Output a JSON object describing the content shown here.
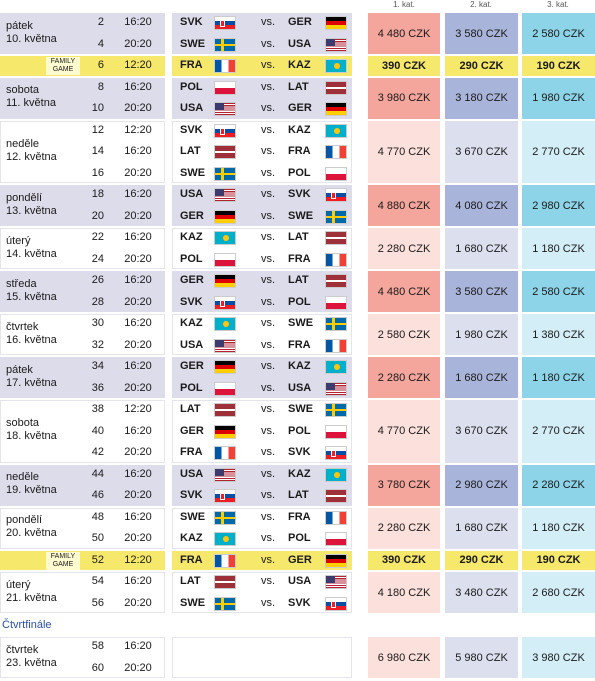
{
  "header": {
    "categories": [
      "1. kat.",
      "2. kat.",
      "3. kat."
    ]
  },
  "vs_label": "vs.",
  "flags": {
    "SVK": {
      "style": "h",
      "colors": [
        "#ffffff",
        "#0b4ea2",
        "#ee1c25"
      ]
    },
    "GER": {
      "style": "h",
      "colors": [
        "#000000",
        "#dd0000",
        "#ffce00"
      ]
    },
    "SWE": {
      "style": "cross",
      "colors": [
        "#006aa7",
        "#fecc00"
      ]
    },
    "USA": {
      "style": "usa",
      "colors": [
        "#b22234",
        "#ffffff",
        "#3c3b6e"
      ]
    },
    "FRA": {
      "style": "v",
      "colors": [
        "#0055a4",
        "#ffffff",
        "#ef4135"
      ]
    },
    "KAZ": {
      "style": "sun",
      "colors": [
        "#00afca",
        "#fec50c"
      ]
    },
    "POL": {
      "style": "h",
      "colors": [
        "#ffffff",
        "#dc143c"
      ]
    },
    "LAT": {
      "style": "lat",
      "colors": [
        "#9e3039",
        "#ffffff"
      ]
    }
  },
  "groups": [
    {
      "day": "pátek",
      "date": "10. května",
      "shaded": true,
      "matches": [
        {
          "no": 2,
          "time": "16:20",
          "home": "SVK",
          "away": "GER"
        },
        {
          "no": 4,
          "time": "20:20",
          "home": "SWE",
          "away": "USA"
        }
      ],
      "prices": [
        "4 480 CZK",
        "3 580 CZK",
        "2 580 CZK"
      ]
    },
    {
      "label": "FAMILY GAME",
      "family": true,
      "matches": [
        {
          "no": 6,
          "time": "12:20",
          "home": "FRA",
          "away": "KAZ"
        }
      ],
      "prices": [
        "390 CZK",
        "290 CZK",
        "190 CZK"
      ]
    },
    {
      "day": "sobota",
      "date": "11. května",
      "shaded": true,
      "matches": [
        {
          "no": 8,
          "time": "16:20",
          "home": "POL",
          "away": "LAT"
        },
        {
          "no": 10,
          "time": "20:20",
          "home": "USA",
          "away": "GER"
        }
      ],
      "prices": [
        "3 980 CZK",
        "3 180 CZK",
        "1 980 CZK"
      ]
    },
    {
      "day": "neděle",
      "date": "12. května",
      "shaded": false,
      "matches": [
        {
          "no": 12,
          "time": "12:20",
          "home": "SVK",
          "away": "KAZ"
        },
        {
          "no": 14,
          "time": "16:20",
          "home": "LAT",
          "away": "FRA"
        },
        {
          "no": 16,
          "time": "20:20",
          "home": "SWE",
          "away": "POL"
        }
      ],
      "prices": [
        "4 770 CZK",
        "3 670 CZK",
        "2 770 CZK"
      ]
    },
    {
      "day": "pondělí",
      "date": "13. května",
      "shaded": true,
      "matches": [
        {
          "no": 18,
          "time": "16:20",
          "home": "USA",
          "away": "SVK"
        },
        {
          "no": 20,
          "time": "20:20",
          "home": "GER",
          "away": "SWE"
        }
      ],
      "prices": [
        "4 880 CZK",
        "4 080 CZK",
        "2 980 CZK"
      ]
    },
    {
      "day": "úterý",
      "date": "14. května",
      "shaded": false,
      "matches": [
        {
          "no": 22,
          "time": "16:20",
          "home": "KAZ",
          "away": "LAT"
        },
        {
          "no": 24,
          "time": "20:20",
          "home": "POL",
          "away": "FRA"
        }
      ],
      "prices": [
        "2 280 CZK",
        "1 680 CZK",
        "1 180 CZK"
      ]
    },
    {
      "day": "středa",
      "date": "15. května",
      "shaded": true,
      "matches": [
        {
          "no": 26,
          "time": "16:20",
          "home": "GER",
          "away": "LAT"
        },
        {
          "no": 28,
          "time": "20:20",
          "home": "SVK",
          "away": "POL"
        }
      ],
      "prices": [
        "4 480 CZK",
        "3 580 CZK",
        "2 580 CZK"
      ]
    },
    {
      "day": "čtvrtek",
      "date": "16. května",
      "shaded": false,
      "matches": [
        {
          "no": 30,
          "time": "16:20",
          "home": "KAZ",
          "away": "SWE"
        },
        {
          "no": 32,
          "time": "20:20",
          "home": "USA",
          "away": "FRA"
        }
      ],
      "prices": [
        "2 580 CZK",
        "1 980 CZK",
        "1 380 CZK"
      ]
    },
    {
      "day": "pátek",
      "date": "17. května",
      "shaded": true,
      "matches": [
        {
          "no": 34,
          "time": "16:20",
          "home": "GER",
          "away": "KAZ"
        },
        {
          "no": 36,
          "time": "20:20",
          "home": "POL",
          "away": "USA"
        }
      ],
      "prices": [
        "2 280 CZK",
        "1 680 CZK",
        "1 180 CZK"
      ]
    },
    {
      "day": "sobota",
      "date": "18. května",
      "shaded": false,
      "matches": [
        {
          "no": 38,
          "time": "12:20",
          "home": "LAT",
          "away": "SWE"
        },
        {
          "no": 40,
          "time": "16:20",
          "home": "GER",
          "away": "POL"
        },
        {
          "no": 42,
          "time": "20:20",
          "home": "FRA",
          "away": "SVK"
        }
      ],
      "prices": [
        "4 770 CZK",
        "3 670 CZK",
        "2 770 CZK"
      ]
    },
    {
      "day": "neděle",
      "date": "19. května",
      "shaded": true,
      "matches": [
        {
          "no": 44,
          "time": "16:20",
          "home": "USA",
          "away": "KAZ"
        },
        {
          "no": 46,
          "time": "20:20",
          "home": "SVK",
          "away": "LAT"
        }
      ],
      "prices": [
        "3 780 CZK",
        "2 980 CZK",
        "2 280 CZK"
      ]
    },
    {
      "day": "pondělí",
      "date": "20. května",
      "shaded": false,
      "matches": [
        {
          "no": 48,
          "time": "16:20",
          "home": "SWE",
          "away": "FRA"
        },
        {
          "no": 50,
          "time": "20:20",
          "home": "KAZ",
          "away": "POL"
        }
      ],
      "prices": [
        "2 280 CZK",
        "1 680 CZK",
        "1 180 CZK"
      ]
    },
    {
      "label": "FAMILY GAME",
      "family": true,
      "matches": [
        {
          "no": 52,
          "time": "12:20",
          "home": "FRA",
          "away": "GER"
        }
      ],
      "prices": [
        "390 CZK",
        "290 CZK",
        "190 CZK"
      ]
    },
    {
      "day": "úterý",
      "date": "21. května",
      "shaded": false,
      "matches": [
        {
          "no": 54,
          "time": "16:20",
          "home": "LAT",
          "away": "USA"
        },
        {
          "no": 56,
          "time": "20:20",
          "home": "SWE",
          "away": "SVK"
        }
      ],
      "prices": [
        "4 180 CZK",
        "3 480 CZK",
        "2 680 CZK"
      ]
    }
  ],
  "quarterfinal": {
    "title": "Čtvrtfinále",
    "groups": [
      {
        "day": "čtvrtek",
        "date": "23. května",
        "shaded": false,
        "matches": [
          {
            "no": 58,
            "time": "16:20"
          },
          {
            "no": 60,
            "time": "20:20"
          }
        ],
        "prices": [
          "6 980 CZK",
          "5 980 CZK",
          "3 980 CZK"
        ]
      }
    ]
  }
}
